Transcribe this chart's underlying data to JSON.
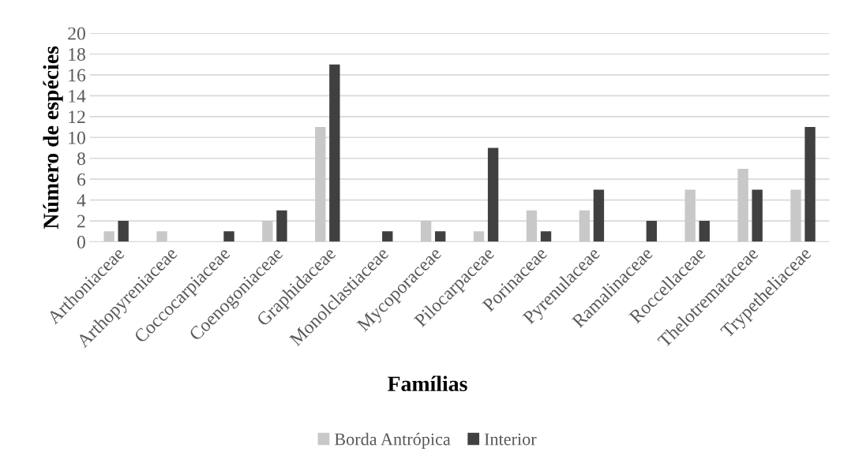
{
  "chart_data": {
    "type": "bar",
    "xlabel": "Famílias",
    "ylabel": "Número de espécies",
    "categories": [
      "Arthoniaceae",
      "Arthopyreniaceae",
      "Coccocarpiaceae",
      "Coenogoniaceae",
      "Graphidaceae",
      "Monolclastiaceae",
      "Mycoporaceae",
      "Pilocarpaceae",
      "Porinaceae",
      "Pyrenulaceae",
      "Ramalinaceae",
      "Roccellaceae",
      "Thelotremataceae",
      "Trypetheliaceae"
    ],
    "series": [
      {
        "name": "Borda Antrópica",
        "color": "#c8c8c8",
        "values": [
          1,
          1,
          0,
          2,
          11,
          0,
          2,
          1,
          3,
          3,
          0,
          5,
          7,
          5
        ]
      },
      {
        "name": "Interior",
        "color": "#404040",
        "values": [
          2,
          0,
          1,
          3,
          17,
          1,
          1,
          9,
          1,
          5,
          2,
          2,
          5,
          11
        ]
      }
    ],
    "ylim": [
      0,
      20
    ],
    "yticks": [
      0,
      2,
      4,
      6,
      8,
      10,
      12,
      14,
      16,
      18,
      20
    ],
    "grid": "y",
    "legend": "bottom"
  }
}
